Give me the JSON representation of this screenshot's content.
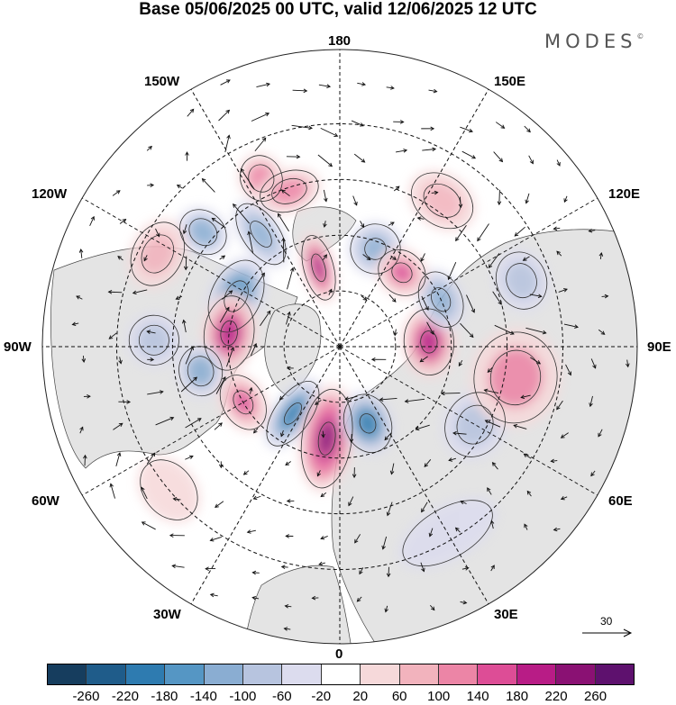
{
  "title": "Base 05/06/2025 00 UTC, valid 12/06/2025 12 UTC",
  "brand": "MODES",
  "brand_mark": "©",
  "longitude_labels": {
    "top": "180",
    "top_left": "150W",
    "top_right": "150E",
    "upper_left": "120W",
    "upper_right": "120E",
    "left": "90W",
    "right": "90E",
    "lower_left": "60W",
    "lower_right": "60E",
    "bottom_left": "30W",
    "bottom_right": "30E",
    "bottom": "0"
  },
  "reference_vector": {
    "value": "30"
  },
  "colorbar": {
    "colors": [
      "#163d5e",
      "#1f5c8a",
      "#2e7bb0",
      "#5596c4",
      "#8aadd2",
      "#b7c4df",
      "#dcdcee",
      "#ffffff",
      "#f6d9da",
      "#f2b3bd",
      "#ec85a6",
      "#dd4d96",
      "#b81c86",
      "#8a1173",
      "#5e116e"
    ],
    "ticks": [
      "-260",
      "-220",
      "-180",
      "-140",
      "-100",
      "-60",
      "-20",
      "20",
      "60",
      "100",
      "140",
      "180",
      "220",
      "260"
    ]
  },
  "anomalies": [
    {
      "lon": 195,
      "colat": 22,
      "value": 180,
      "rx": 18,
      "ry": 40
    },
    {
      "lon": 160,
      "colat": 28,
      "value": -140,
      "rx": 30,
      "ry": 30
    },
    {
      "lon": 205,
      "colat": 50,
      "value": 120,
      "rx": 25,
      "ry": 28
    },
    {
      "lon": 215,
      "colat": 37,
      "value": -140,
      "rx": 22,
      "ry": 42
    },
    {
      "lon": 198,
      "colat": 44,
      "value": 100,
      "rx": 36,
      "ry": 24
    },
    {
      "lon": 230,
      "colat": 48,
      "value": -120,
      "rx": 25,
      "ry": 30
    },
    {
      "lon": 243,
      "colat": 55,
      "value": 80,
      "rx": 40,
      "ry": 30
    },
    {
      "lon": 244,
      "colat": 31,
      "value": -180,
      "rx": 46,
      "ry": 30
    },
    {
      "lon": 263,
      "colat": 30,
      "value": 200,
      "rx": 45,
      "ry": 30
    },
    {
      "lon": 268,
      "colat": 50,
      "value": -100,
      "rx": 30,
      "ry": 30
    },
    {
      "lon": 280,
      "colat": 38,
      "value": -120,
      "rx": 30,
      "ry": 26
    },
    {
      "lon": 300,
      "colat": 30,
      "value": 140,
      "rx": 35,
      "ry": 25
    },
    {
      "lon": 325,
      "colat": 22,
      "value": -200,
      "rx": 22,
      "ry": 45
    },
    {
      "lon": 352,
      "colat": 25,
      "value": 240,
      "rx": 30,
      "ry": 60
    },
    {
      "lon": 20,
      "colat": 22,
      "value": -220,
      "rx": 28,
      "ry": 36
    },
    {
      "lon": 60,
      "colat": 42,
      "value": -80,
      "rx": 40,
      "ry": 35
    },
    {
      "lon": 93,
      "colat": 24,
      "value": 200,
      "rx": 40,
      "ry": 30
    },
    {
      "lon": 80,
      "colat": 48,
      "value": 100,
      "rx": 55,
      "ry": 50
    },
    {
      "lon": 115,
      "colat": 30,
      "value": -140,
      "rx": 35,
      "ry": 25
    },
    {
      "lon": 110,
      "colat": 52,
      "value": -100,
      "rx": 35,
      "ry": 30
    },
    {
      "lon": 140,
      "colat": 26,
      "value": 140,
      "rx": 30,
      "ry": 26
    },
    {
      "lon": 145,
      "colat": 48,
      "value": 80,
      "rx": 40,
      "ry": 30
    },
    {
      "lon": 30,
      "colat": 58,
      "value": -60,
      "rx": 60,
      "ry": 30
    },
    {
      "lon": 310,
      "colat": 60,
      "value": 60,
      "rx": 40,
      "ry": 30
    }
  ]
}
